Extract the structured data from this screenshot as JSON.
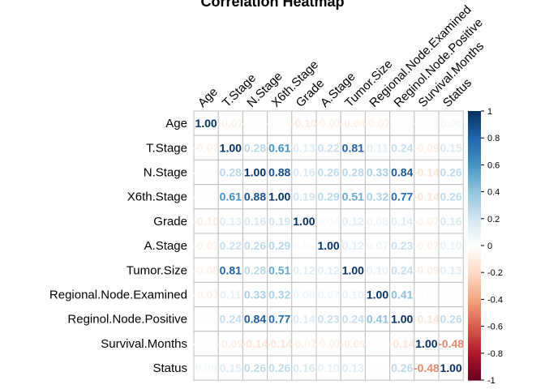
{
  "chart_data": {
    "type": "heatmap",
    "title": "Correlation Heatmap",
    "labels": [
      "Age",
      "T.Stage",
      "N.Stage",
      "X6th.Stage",
      "Grade",
      "A.Stage",
      "Tumor.Size",
      "Regional.Node.Examined",
      "Reginol.Node.Positive",
      "Survival.Months",
      "Status"
    ],
    "matrix": [
      [
        1.0,
        -0.07,
        -0.01,
        -0.02,
        -0.1,
        -0.07,
        -0.08,
        -0.07,
        0.01,
        -0.01,
        0.06
      ],
      [
        -0.07,
        1.0,
        0.28,
        0.61,
        0.13,
        0.22,
        0.81,
        0.11,
        0.24,
        -0.09,
        0.15
      ],
      [
        -0.01,
        0.28,
        1.0,
        0.88,
        0.16,
        0.26,
        0.28,
        0.33,
        0.84,
        -0.14,
        0.26
      ],
      [
        -0.02,
        0.61,
        0.88,
        1.0,
        0.19,
        0.29,
        0.51,
        0.32,
        0.77,
        -0.14,
        0.26
      ],
      [
        -0.1,
        0.13,
        0.16,
        0.19,
        1.0,
        0.04,
        0.12,
        0.08,
        0.14,
        -0.07,
        0.16
      ],
      [
        -0.07,
        0.22,
        0.26,
        0.29,
        0.04,
        1.0,
        0.12,
        0.07,
        0.23,
        -0.07,
        0.1
      ],
      [
        -0.08,
        0.81,
        0.28,
        0.51,
        0.12,
        0.12,
        1.0,
        0.1,
        0.24,
        -0.09,
        0.13
      ],
      [
        -0.07,
        0.11,
        0.33,
        0.32,
        0.08,
        0.07,
        0.1,
        1.0,
        0.41,
        -0.02,
        0.01
      ],
      [
        0.01,
        0.24,
        0.84,
        0.77,
        0.14,
        0.23,
        0.24,
        0.41,
        1.0,
        -0.14,
        0.26
      ],
      [
        -0.01,
        -0.09,
        -0.14,
        -0.14,
        -0.07,
        -0.07,
        -0.09,
        -0.02,
        -0.14,
        1.0,
        -0.48
      ],
      [
        0.06,
        0.15,
        0.26,
        0.26,
        0.16,
        0.1,
        0.13,
        0.01,
        0.26,
        -0.48,
        1.0
      ]
    ],
    "colorbar": {
      "range": [
        -1,
        1
      ],
      "ticks": [
        -1,
        -0.8,
        -0.6,
        -0.4,
        -0.2,
        0,
        0.2,
        0.4,
        0.6,
        0.8,
        1
      ]
    },
    "colors": {
      "negative_end": "#67001f",
      "positive_end": "#053061",
      "midpoint": "#ffffff",
      "grid": "#bfbfbf"
    },
    "legend_placement": "right"
  }
}
